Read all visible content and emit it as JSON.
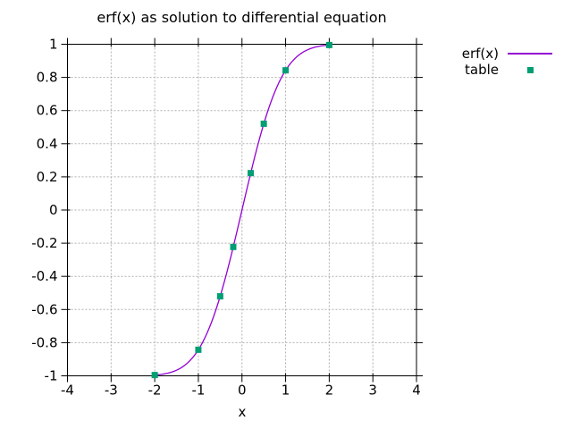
{
  "title": "erf(x) as solution to differential equation",
  "legend": {
    "items": [
      {
        "label": "erf(x)",
        "sample": "line",
        "color": "#9400d3"
      },
      {
        "label": "table",
        "sample": "filled-square",
        "color": "#009e73"
      }
    ],
    "position": "outside top-right"
  },
  "chart_data": {
    "type": "line",
    "title": "erf(x) as solution to differential equation",
    "xlabel": "x",
    "ylabel": "",
    "xlim": [
      -4,
      4
    ],
    "ylim": [
      -1,
      1
    ],
    "xticks": [
      -4,
      -3,
      -2,
      -1,
      0,
      1,
      2,
      3,
      4
    ],
    "xtick_labels": [
      "-4",
      "-3",
      "-2",
      "-1",
      "0",
      "1",
      "2",
      "3",
      "4"
    ],
    "yticks": [
      -1,
      -0.8,
      -0.6,
      -0.4,
      -0.2,
      0,
      0.2,
      0.4,
      0.6,
      0.8,
      1
    ],
    "ytick_labels": [
      "-1",
      "-0.8",
      "-0.6",
      "-0.4",
      "-0.2",
      "0",
      "0.2",
      "0.4",
      "0.6",
      "0.8",
      "1"
    ],
    "grid": true,
    "grid_color": "#b0b0b0",
    "background": "#ffffff",
    "text_color": "#000000",
    "series": [
      {
        "name": "erf(x)",
        "type": "line",
        "color": "#9400d3",
        "x_start": -2.0,
        "x_step": 0.05,
        "y": [
          -0.99532,
          -0.99418,
          -0.99279,
          -0.99111,
          -0.98909,
          -0.98667,
          -0.98379,
          -0.98038,
          -0.97635,
          -0.97162,
          -0.96611,
          -0.9597,
          -0.95229,
          -0.94376,
          -0.93401,
          -0.9229,
          -0.91031,
          -0.89612,
          -0.88021,
          -0.86244,
          -0.8427,
          -0.82089,
          -0.79691,
          -0.77067,
          -0.7421,
          -0.71116,
          -0.6778,
          -0.64203,
          -0.60386,
          -0.56332,
          -0.5205,
          -0.47548,
          -0.42839,
          -0.37938,
          -0.32863,
          -0.27633,
          -0.2227,
          -0.168,
          -0.11246,
          -0.05637,
          0.0,
          0.05637,
          0.11246,
          0.168,
          0.2227,
          0.27633,
          0.32863,
          0.37938,
          0.42839,
          0.47548,
          0.5205,
          0.56332,
          0.60386,
          0.64203,
          0.6778,
          0.71116,
          0.7421,
          0.77067,
          0.79691,
          0.82089,
          0.8427,
          0.86244,
          0.88021,
          0.89612,
          0.91031,
          0.9229,
          0.93401,
          0.94376,
          0.95229,
          0.9597,
          0.96611,
          0.97162,
          0.97635,
          0.98038,
          0.98379,
          0.98667,
          0.98909,
          0.99111,
          0.99279,
          0.99418,
          0.99532
        ]
      },
      {
        "name": "table",
        "type": "points",
        "marker": "filled-square",
        "color": "#009e73",
        "points": [
          [
            -2.0,
            -0.99532
          ],
          [
            -1.0,
            -0.8427
          ],
          [
            -0.5,
            -0.5205
          ],
          [
            -0.2,
            -0.2227
          ],
          [
            0.2,
            0.2227
          ],
          [
            0.5,
            0.5205
          ],
          [
            1.0,
            0.8427
          ],
          [
            2.0,
            0.99532
          ]
        ]
      }
    ]
  }
}
